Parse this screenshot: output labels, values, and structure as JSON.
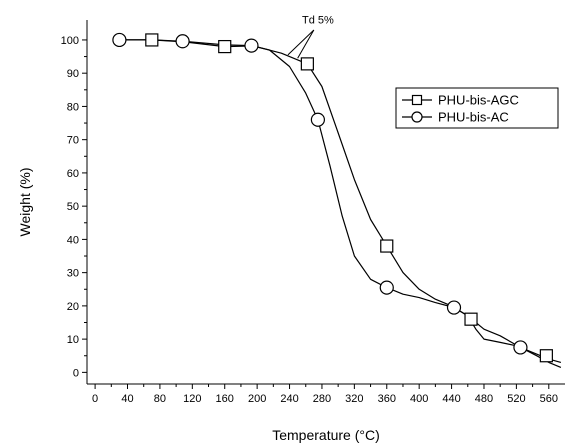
{
  "chart_data": {
    "type": "line",
    "title": "",
    "xlabel": "Temperature (°C)",
    "ylabel": "Weight (%)",
    "xlim": [
      -10,
      580
    ],
    "ylim": [
      -3.5,
      106
    ],
    "xticks": [
      0,
      40,
      80,
      120,
      160,
      200,
      240,
      280,
      320,
      360,
      400,
      440,
      480,
      520,
      560
    ],
    "yticks": [
      0,
      10,
      20,
      30,
      40,
      50,
      60,
      70,
      80,
      90,
      100
    ],
    "grid": false,
    "legend_position": "top-right",
    "series": [
      {
        "name": "PHU-bis-AGC",
        "marker": "square",
        "color": "#000000",
        "curve": [
          [
            30,
            100
          ],
          [
            70,
            100
          ],
          [
            110,
            99.4
          ],
          [
            160,
            98
          ],
          [
            195,
            98.2
          ],
          [
            230,
            96
          ],
          [
            262,
            92.8
          ],
          [
            280,
            86
          ],
          [
            300,
            72
          ],
          [
            320,
            58
          ],
          [
            340,
            46
          ],
          [
            360,
            38
          ],
          [
            380,
            30
          ],
          [
            400,
            25
          ],
          [
            420,
            22
          ],
          [
            440,
            20
          ],
          [
            460,
            17
          ],
          [
            470,
            13
          ],
          [
            480,
            10
          ],
          [
            500,
            9
          ],
          [
            520,
            8
          ],
          [
            540,
            6
          ],
          [
            560,
            4
          ],
          [
            575,
            3
          ]
        ],
        "markers": [
          [
            70,
            100
          ],
          [
            160,
            98
          ],
          [
            262,
            92.8
          ],
          [
            360,
            38
          ],
          [
            464,
            16
          ],
          [
            557,
            5
          ]
        ]
      },
      {
        "name": "PHU-bis-AC",
        "marker": "circle",
        "color": "#000000",
        "curve": [
          [
            30,
            100
          ],
          [
            70,
            100
          ],
          [
            110,
            99.6
          ],
          [
            160,
            98.5
          ],
          [
            193,
            98.3
          ],
          [
            215,
            97
          ],
          [
            240,
            92
          ],
          [
            260,
            84
          ],
          [
            275,
            76
          ],
          [
            290,
            62
          ],
          [
            305,
            47
          ],
          [
            320,
            35
          ],
          [
            340,
            28
          ],
          [
            360,
            25.5
          ],
          [
            380,
            23.5
          ],
          [
            400,
            22.5
          ],
          [
            420,
            21
          ],
          [
            443,
            19.5
          ],
          [
            460,
            17
          ],
          [
            480,
            13
          ],
          [
            500,
            11
          ],
          [
            525,
            7.5
          ],
          [
            545,
            5
          ],
          [
            560,
            3
          ],
          [
            575,
            1.5
          ]
        ],
        "markers": [
          [
            30,
            100
          ],
          [
            108,
            99.6
          ],
          [
            193,
            98.3
          ],
          [
            275,
            76
          ],
          [
            360,
            25.5
          ],
          [
            443,
            19.5
          ],
          [
            525,
            7.5
          ]
        ]
      }
    ],
    "annotations": [
      {
        "text": "Td 5%",
        "x": 275,
        "y": 105
      }
    ]
  }
}
